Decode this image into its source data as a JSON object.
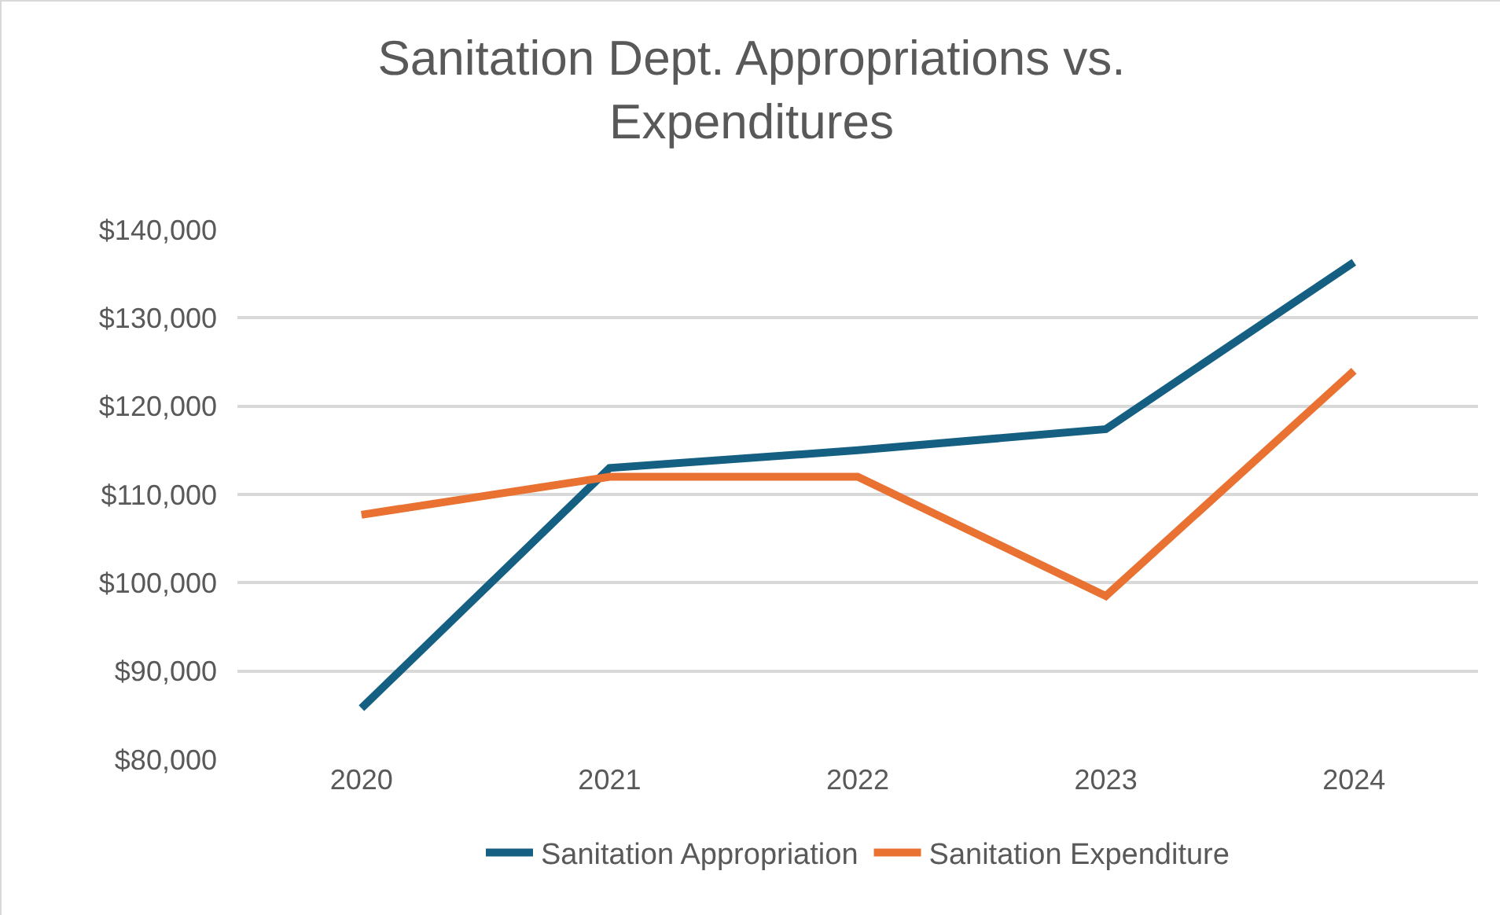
{
  "chart_data": {
    "type": "line",
    "title": "Sanitation Dept. Appropriations vs.\nExpenditures",
    "categories": [
      "2020",
      "2021",
      "2022",
      "2023",
      "2024"
    ],
    "series": [
      {
        "name": "Sanitation Appropriation",
        "color": "#156082",
        "values": [
          85800,
          113000,
          115000,
          117400,
          136300
        ]
      },
      {
        "name": "Sanitation Expenditure",
        "color": "#e97132",
        "values": [
          107700,
          112000,
          112000,
          98500,
          124000
        ]
      }
    ],
    "ylim": [
      80000,
      140000
    ],
    "yticks": [
      {
        "value": 80000,
        "label": "$80,000"
      },
      {
        "value": 90000,
        "label": "$90,000"
      },
      {
        "value": 100000,
        "label": "$100,000"
      },
      {
        "value": 110000,
        "label": "$110,000"
      },
      {
        "value": 120000,
        "label": "$120,000"
      },
      {
        "value": 130000,
        "label": "$130,000"
      },
      {
        "value": 140000,
        "label": "$140,000"
      }
    ],
    "grid": "y",
    "legend": "bottom",
    "marker": "none",
    "line_style": "solid"
  }
}
